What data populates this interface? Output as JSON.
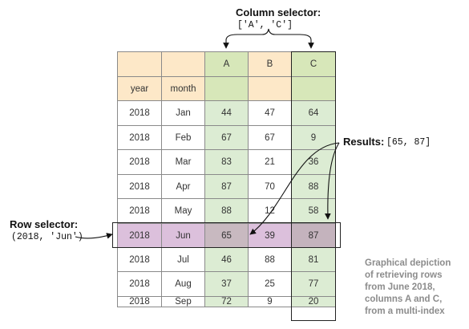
{
  "column_selector": {
    "title": "Column selector:",
    "code": "['A', 'C']"
  },
  "row_selector": {
    "title": "Row selector:",
    "code": "(2018, 'Jun')"
  },
  "results": {
    "title": "Results:",
    "code": "[65, 87]"
  },
  "table": {
    "column_headers": [
      "",
      "",
      "A",
      "B",
      "C"
    ],
    "index_names": [
      "year",
      "month",
      "",
      "",
      ""
    ],
    "rows": [
      [
        "2018",
        "Jan",
        "44",
        "47",
        "64"
      ],
      [
        "2018",
        "Feb",
        "67",
        "67",
        "9"
      ],
      [
        "2018",
        "Mar",
        "83",
        "21",
        "36"
      ],
      [
        "2018",
        "Apr",
        "87",
        "70",
        "88"
      ],
      [
        "2018",
        "May",
        "88",
        "12",
        "58"
      ],
      [
        "2018",
        "Jun",
        "65",
        "39",
        "87"
      ],
      [
        "2018",
        "Jul",
        "46",
        "88",
        "81"
      ],
      [
        "2018",
        "Aug",
        "37",
        "25",
        "77"
      ],
      [
        "2018",
        "Sep",
        "72",
        "9",
        "20"
      ]
    ],
    "selected_row": 5,
    "selected_columns": [
      2,
      4
    ]
  },
  "caption": [
    "Graphical depiction",
    "of retrieving rows",
    "from June 2018,",
    "columns A and C,",
    "from a multi-index"
  ],
  "colors": {
    "header_fill": "#fde8c8",
    "selected_column_fill": "#dcecd3",
    "selected_row_fill": "#dcc0dc",
    "caption_text": "#8c8c8c"
  }
}
